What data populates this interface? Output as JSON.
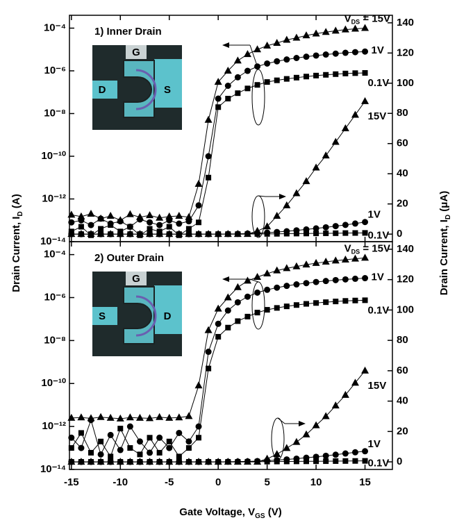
{
  "chart_data": [
    {
      "type": "line",
      "title": "1) Inner Drain",
      "yscale": "log",
      "y_label": [
        "Drain Current, I",
        "D",
        " (A)"
      ],
      "y2_label": [
        "Drain Current, I",
        "D",
        " (μA)"
      ],
      "inset": {
        "gate": "G",
        "left": "D",
        "right": "S"
      },
      "xlim": [
        -15.2,
        17.8
      ],
      "xticks": [
        -15,
        -10,
        -5,
        0,
        5,
        10,
        15
      ],
      "show_xtick_labels": false,
      "ylim": [
        1e-14,
        0.0004
      ],
      "yticks": [
        {
          "value": 1e-14,
          "label": "10⁻¹⁴"
        },
        {
          "value": 1e-12,
          "label": "10⁻¹²"
        },
        {
          "value": 1e-10,
          "label": "10⁻¹⁰"
        },
        {
          "value": 1e-08,
          "label": "10⁻⁸"
        },
        {
          "value": 1e-06,
          "label": "10⁻⁶"
        },
        {
          "value": 0.0001,
          "label": "10⁻⁴"
        }
      ],
      "y2lim": [
        -5,
        145
      ],
      "y2ticks": [
        0,
        20,
        40,
        60,
        80,
        100,
        120,
        140
      ],
      "x": [
        -15,
        -14,
        -13,
        -12,
        -11,
        -10,
        -9,
        -8,
        -7,
        -6,
        -5,
        -4,
        -3,
        -2,
        -1,
        0,
        1,
        2,
        3,
        4,
        5,
        6,
        7,
        8,
        9,
        10,
        11,
        12,
        13,
        14,
        15
      ],
      "series": [
        {
          "name": "15V",
          "prefix": [
            "V",
            "DS",
            " = "
          ],
          "marker": "triangle",
          "color": "#000000",
          "axis": "y",
          "values": [
            1.8e-13,
            1.5e-13,
            2e-13,
            1.2e-13,
            1.6e-13,
            1e-13,
            1.9e-13,
            1.4e-13,
            1.7e-13,
            1.3e-13,
            1.5e-13,
            1.6e-13,
            1.4e-13,
            5e-12,
            5e-09,
            3e-07,
            1e-06,
            3e-06,
            6e-06,
            1e-05,
            1.5e-05,
            2e-05,
            2.8e-05,
            3.5e-05,
            4.5e-05,
            5.5e-05,
            6.5e-05,
            7.5e-05,
            8.5e-05,
            9.3e-05,
            0.0001
          ]
        },
        {
          "name": "1V",
          "marker": "circle",
          "color": "#000000",
          "axis": "y",
          "values": [
            8e-14,
            1e-13,
            6e-14,
            1.2e-13,
            7e-14,
            9e-14,
            5e-14,
            1.1e-13,
            8e-14,
            6e-14,
            1e-13,
            7e-14,
            9e-14,
            5e-13,
            1e-10,
            5e-08,
            2e-07,
            5e-07,
            1e-06,
            1.6e-06,
            2.2e-06,
            2.8e-06,
            3.4e-06,
            4e-06,
            4.6e-06,
            5.2e-06,
            5.8e-06,
            6.4e-06,
            7e-06,
            7.5e-06,
            8e-06
          ]
        },
        {
          "name": "0.1V",
          "marker": "square",
          "color": "#000000",
          "axis": "y",
          "values": [
            3e-14,
            5e-14,
            2e-14,
            4e-14,
            6e-14,
            3e-14,
            5e-14,
            2e-14,
            4e-14,
            3e-14,
            5e-14,
            2e-14,
            4e-14,
            8e-14,
            1e-11,
            2e-08,
            5e-08,
            9e-08,
            1.5e-07,
            2.2e-07,
            3e-07,
            3.6e-07,
            4.2e-07,
            4.8e-07,
            5.4e-07,
            6e-07,
            6.5e-07,
            7e-07,
            7.5e-07,
            7.8e-07,
            8e-07
          ]
        },
        {
          "name": "15V",
          "marker": "triangle",
          "color": "#000000",
          "axis": "y2",
          "values": [
            0,
            0,
            0,
            0,
            0,
            0,
            0,
            0,
            0,
            0,
            0,
            0,
            0,
            0,
            0,
            0,
            0,
            0,
            0,
            2,
            5,
            12,
            19,
            27,
            35,
            44,
            52,
            61,
            70,
            79,
            88
          ]
        },
        {
          "name": "1V",
          "marker": "circle",
          "color": "#000000",
          "axis": "y2",
          "values": [
            0,
            0,
            0,
            0,
            0,
            0,
            0,
            0,
            0,
            0,
            0,
            0,
            0,
            0,
            0,
            0,
            0.1,
            0.2,
            0.4,
            0.6,
            1,
            1.4,
            1.9,
            2.5,
            3.1,
            3.8,
            4.5,
            5.3,
            6.1,
            7,
            8
          ]
        },
        {
          "name": "0.1V",
          "marker": "square",
          "color": "#000000",
          "axis": "y2",
          "values": [
            0,
            0,
            0,
            0,
            0,
            0,
            0,
            0,
            0,
            0,
            0,
            0,
            0,
            0,
            0,
            0,
            0,
            0,
            0.05,
            0.1,
            0.15,
            0.2,
            0.3,
            0.35,
            0.4,
            0.5,
            0.55,
            0.6,
            0.7,
            0.75,
            0.8
          ]
        }
      ]
    },
    {
      "type": "line",
      "title": "2) Outer Drain",
      "yscale": "log",
      "x_label": [
        "Gate Voltage, V",
        "GS",
        " (V)"
      ],
      "inset": {
        "gate": "G",
        "left": "S",
        "right": "D"
      },
      "xlim": [
        -15.2,
        17.8
      ],
      "xticks": [
        -15,
        -10,
        -5,
        0,
        5,
        10,
        15
      ],
      "show_xtick_labels": true,
      "ylim": [
        1e-14,
        0.0004
      ],
      "yticks": [
        {
          "value": 1e-14,
          "label": "10⁻¹⁴"
        },
        {
          "value": 1e-12,
          "label": "10⁻¹²"
        },
        {
          "value": 1e-10,
          "label": "10⁻¹⁰"
        },
        {
          "value": 1e-08,
          "label": "10⁻⁸"
        },
        {
          "value": 1e-06,
          "label": "10⁻⁶"
        },
        {
          "value": 0.0001,
          "label": "10⁻⁴"
        }
      ],
      "y2lim": [
        -5,
        145
      ],
      "y2ticks": [
        0,
        20,
        40,
        60,
        80,
        100,
        120,
        140
      ],
      "x": [
        -15,
        -14,
        -13,
        -12,
        -11,
        -10,
        -9,
        -8,
        -7,
        -6,
        -5,
        -4,
        -3,
        -2,
        -1,
        0,
        1,
        2,
        3,
        4,
        5,
        6,
        7,
        8,
        9,
        10,
        11,
        12,
        13,
        14,
        15
      ],
      "series": [
        {
          "name": "15V",
          "prefix": [
            "V",
            "DS",
            " = "
          ],
          "marker": "triangle",
          "color": "#000000",
          "axis": "y",
          "values": [
            2.5e-12,
            2.6e-12,
            2.4e-12,
            2.7e-12,
            2.5e-12,
            2.3e-12,
            2.6e-12,
            2.5e-12,
            2.4e-12,
            2.7e-12,
            2.5e-12,
            2.6e-12,
            3e-12,
            8e-11,
            3e-08,
            3e-07,
            1e-06,
            3e-06,
            6e-06,
            9e-06,
            1.3e-05,
            1.8e-05,
            2.3e-05,
            2.8e-05,
            3.4e-05,
            4e-05,
            4.6e-05,
            5.2e-05,
            5.8e-05,
            6.4e-05,
            7e-05
          ]
        },
        {
          "name": "1V",
          "marker": "circle",
          "color": "#000000",
          "axis": "y",
          "values": [
            3e-13,
            1e-13,
            2e-12,
            5e-14,
            4e-13,
            8e-14,
            1e-12,
            2e-13,
            6e-14,
            3e-13,
            1e-13,
            5e-13,
            2e-13,
            1e-12,
            3e-09,
            6e-08,
            2.5e-07,
            6e-07,
            1.1e-06,
            1.7e-06,
            2.3e-06,
            2.9e-06,
            3.5e-06,
            4.1e-06,
            4.7e-06,
            5.3e-06,
            5.9e-06,
            6.5e-06,
            7e-06,
            7.5e-06,
            8e-06
          ]
        },
        {
          "name": "0.1V",
          "marker": "square",
          "color": "#000000",
          "axis": "y",
          "values": [
            1e-13,
            5e-13,
            6e-14,
            2e-13,
            4e-14,
            8e-13,
            1e-13,
            5e-14,
            3e-13,
            6e-14,
            2e-13,
            4e-14,
            1e-13,
            3e-13,
            5e-10,
            1.5e-08,
            4e-08,
            8e-08,
            1.3e-07,
            2e-07,
            2.7e-07,
            3.3e-07,
            3.9e-07,
            4.5e-07,
            5.1e-07,
            5.6e-07,
            6.1e-07,
            6.6e-07,
            7e-07,
            7.3e-07,
            7.5e-07
          ]
        },
        {
          "name": "15V",
          "marker": "triangle",
          "color": "#000000",
          "axis": "y2",
          "values": [
            0,
            0,
            0,
            0,
            0,
            0,
            0,
            0,
            0,
            0,
            0,
            0,
            0,
            0,
            0,
            0,
            0,
            0,
            0,
            0,
            2,
            5,
            9,
            13,
            18,
            24,
            30,
            37,
            44,
            52,
            60
          ]
        },
        {
          "name": "1V",
          "marker": "circle",
          "color": "#000000",
          "axis": "y2",
          "values": [
            0,
            0,
            0,
            0,
            0,
            0,
            0,
            0,
            0,
            0,
            0,
            0,
            0,
            0,
            0,
            0,
            0.1,
            0.2,
            0.3,
            0.5,
            0.8,
            1.2,
            1.6,
            2.1,
            2.7,
            3.3,
            4,
            4.7,
            5.5,
            6.3,
            7
          ]
        },
        {
          "name": "0.1V",
          "marker": "square",
          "color": "#000000",
          "axis": "y2",
          "values": [
            0,
            0,
            0,
            0,
            0,
            0,
            0,
            0,
            0,
            0,
            0,
            0,
            0,
            0,
            0,
            0,
            0,
            0,
            0.05,
            0.1,
            0.15,
            0.2,
            0.25,
            0.3,
            0.35,
            0.4,
            0.45,
            0.5,
            0.55,
            0.6,
            0.65
          ]
        }
      ]
    }
  ]
}
